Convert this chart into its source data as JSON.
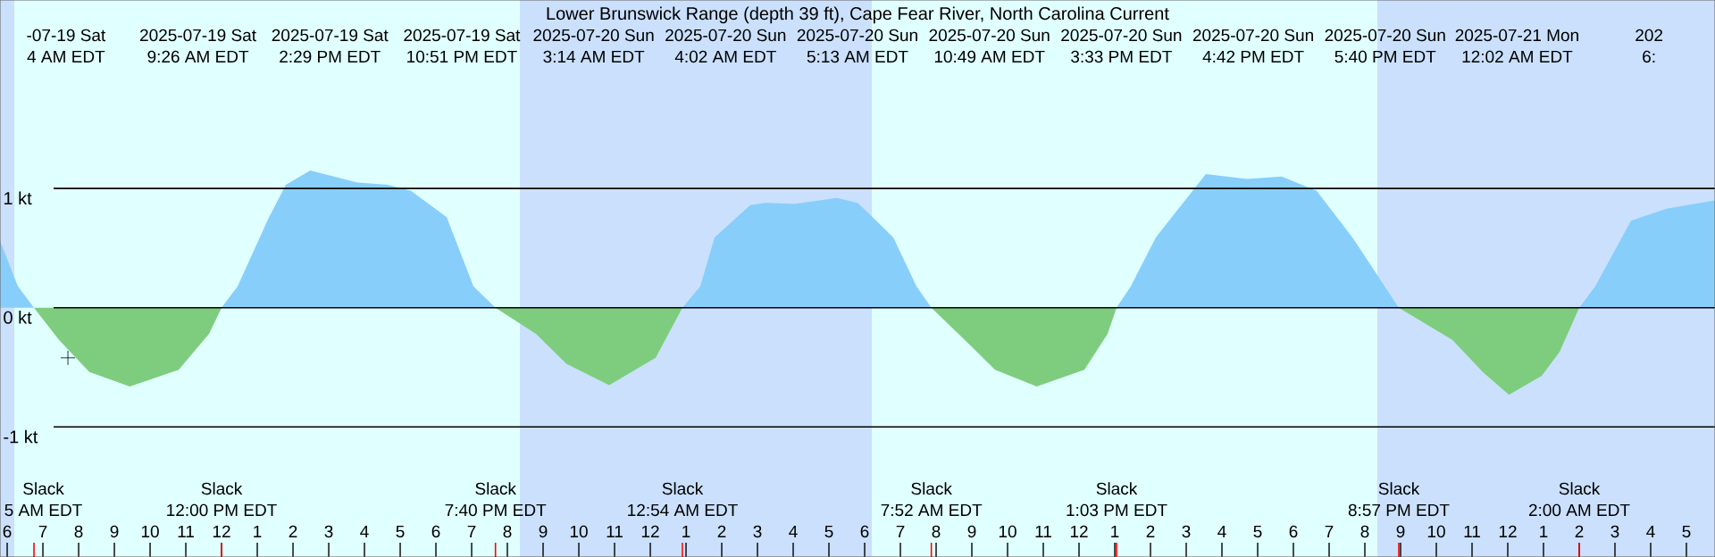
{
  "chart_data": {
    "type": "area",
    "title": "Lower Brunswick Range (depth 39 ft), Cape Fear River, North Carolina Current",
    "xlim": [
      "2025-07-19T05:48",
      "2025-07-21T05:48"
    ],
    "ylim": [
      -2.09,
      2.58
    ],
    "xticks": [
      {
        "value": "2025-07-19T06:00",
        "label": "6"
      },
      {
        "value": "2025-07-19T07:00",
        "label": "7"
      },
      {
        "value": "2025-07-19T08:00",
        "label": "8"
      },
      {
        "value": "2025-07-19T09:00",
        "label": "9"
      },
      {
        "value": "2025-07-19T10:00",
        "label": "10"
      },
      {
        "value": "2025-07-19T11:00",
        "label": "11"
      },
      {
        "value": "2025-07-19T12:00",
        "label": "12"
      },
      {
        "value": "2025-07-19T13:00",
        "label": "1"
      },
      {
        "value": "2025-07-19T14:00",
        "label": "2"
      },
      {
        "value": "2025-07-19T15:00",
        "label": "3"
      },
      {
        "value": "2025-07-19T16:00",
        "label": "4"
      },
      {
        "value": "2025-07-19T17:00",
        "label": "5"
      },
      {
        "value": "2025-07-19T18:00",
        "label": "6"
      },
      {
        "value": "2025-07-19T19:00",
        "label": "7"
      },
      {
        "value": "2025-07-19T20:00",
        "label": "8"
      },
      {
        "value": "2025-07-19T21:00",
        "label": "9"
      },
      {
        "value": "2025-07-19T22:00",
        "label": "10"
      },
      {
        "value": "2025-07-19T23:00",
        "label": "11"
      },
      {
        "value": "2025-07-20T00:00",
        "label": "12"
      },
      {
        "value": "2025-07-20T01:00",
        "label": "1"
      },
      {
        "value": "2025-07-20T02:00",
        "label": "2"
      },
      {
        "value": "2025-07-20T03:00",
        "label": "3"
      },
      {
        "value": "2025-07-20T04:00",
        "label": "4"
      },
      {
        "value": "2025-07-20T05:00",
        "label": "5"
      },
      {
        "value": "2025-07-20T06:00",
        "label": "6"
      },
      {
        "value": "2025-07-20T07:00",
        "label": "7"
      },
      {
        "value": "2025-07-20T08:00",
        "label": "8"
      },
      {
        "value": "2025-07-20T09:00",
        "label": "9"
      },
      {
        "value": "2025-07-20T10:00",
        "label": "10"
      },
      {
        "value": "2025-07-20T11:00",
        "label": "11"
      },
      {
        "value": "2025-07-20T12:00",
        "label": "12"
      },
      {
        "value": "2025-07-20T13:00",
        "label": "1"
      },
      {
        "value": "2025-07-20T14:00",
        "label": "2"
      },
      {
        "value": "2025-07-20T15:00",
        "label": "3"
      },
      {
        "value": "2025-07-20T16:00",
        "label": "4"
      },
      {
        "value": "2025-07-20T17:00",
        "label": "5"
      },
      {
        "value": "2025-07-20T18:00",
        "label": "6"
      },
      {
        "value": "2025-07-20T19:00",
        "label": "7"
      },
      {
        "value": "2025-07-20T20:00",
        "label": "8"
      },
      {
        "value": "2025-07-20T21:00",
        "label": "9"
      },
      {
        "value": "2025-07-20T22:00",
        "label": "10"
      },
      {
        "value": "2025-07-20T23:00",
        "label": "11"
      },
      {
        "value": "2025-07-21T00:00",
        "label": "12"
      },
      {
        "value": "2025-07-21T01:00",
        "label": "1"
      },
      {
        "value": "2025-07-21T02:00",
        "label": "2"
      },
      {
        "value": "2025-07-21T03:00",
        "label": "3"
      },
      {
        "value": "2025-07-21T04:00",
        "label": "4"
      },
      {
        "value": "2025-07-21T05:00",
        "label": "5"
      }
    ],
    "yticks": [
      {
        "value": 1,
        "label": "1 kt"
      },
      {
        "value": 0,
        "label": "0 kt"
      },
      {
        "value": -1,
        "label": "-1 kt"
      }
    ],
    "grid": "y",
    "bands": [
      {
        "axis": "x",
        "from": "2025-07-19T05:48",
        "to": "2025-07-19T06:12",
        "color": "#cae0fc"
      },
      {
        "axis": "x",
        "from": "2025-07-19T06:12",
        "to": "2025-07-19T20:21",
        "color": "#e0ffff"
      },
      {
        "axis": "x",
        "from": "2025-07-19T20:21",
        "to": "2025-07-20T06:12",
        "color": "#cae0fc"
      },
      {
        "axis": "x",
        "from": "2025-07-20T06:12",
        "to": "2025-07-20T20:21",
        "color": "#e0ffff"
      },
      {
        "axis": "x",
        "from": "2025-07-20T20:21",
        "to": "2025-07-21T05:48",
        "color": "#cae0fc"
      }
    ],
    "x": [
      "2025-07-19T05:48",
      "2025-07-19T06:18",
      "2025-07-19T06:45",
      "2025-07-19T07:27",
      "2025-07-19T08:18",
      "2025-07-19T09:26",
      "2025-07-19T10:48",
      "2025-07-19T11:39",
      "2025-07-19T12:00",
      "2025-07-19T12:27",
      "2025-07-19T13:18",
      "2025-07-19T13:48",
      "2025-07-19T14:29",
      "2025-07-19T15:48",
      "2025-07-19T16:39",
      "2025-07-19T17:18",
      "2025-07-19T18:18",
      "2025-07-19T19:03",
      "2025-07-19T19:40",
      "2025-07-19T20:48",
      "2025-07-19T21:39",
      "2025-07-19T22:51",
      "2025-07-20T00:09",
      "2025-07-20T00:54",
      "2025-07-20T01:24",
      "2025-07-20T01:48",
      "2025-07-20T02:48",
      "2025-07-20T03:14",
      "2025-07-20T04:02",
      "2025-07-20T05:13",
      "2025-07-20T05:48",
      "2025-07-20T06:09",
      "2025-07-20T06:48",
      "2025-07-20T07:27",
      "2025-07-20T07:52",
      "2025-07-20T08:48",
      "2025-07-20T09:39",
      "2025-07-20T10:49",
      "2025-07-20T12:09",
      "2025-07-20T12:48",
      "2025-07-20T13:03",
      "2025-07-20T13:27",
      "2025-07-20T14:09",
      "2025-07-20T15:33",
      "2025-07-20T16:42",
      "2025-07-20T17:40",
      "2025-07-20T18:39",
      "2025-07-20T19:39",
      "2025-07-20T20:57",
      "2025-07-20T22:27",
      "2025-07-20T23:18",
      "2025-07-21T00:02",
      "2025-07-21T00:57",
      "2025-07-21T01:27",
      "2025-07-21T02:00",
      "2025-07-21T02:27",
      "2025-07-21T03:27",
      "2025-07-21T04:27",
      "2025-07-21T05:48"
    ],
    "series": [
      {
        "color": "#87cefa",
        "values": [
          0.56,
          0.18,
          0,
          null,
          null,
          null,
          null,
          null,
          0,
          0.18,
          0.74,
          1.03,
          1.15,
          1.05,
          1.03,
          0.98,
          0.76,
          0.18,
          0,
          null,
          null,
          null,
          null,
          0,
          0.18,
          0.59,
          0.86,
          0.88,
          0.87,
          0.92,
          0.88,
          0.78,
          0.59,
          0.18,
          0,
          null,
          null,
          null,
          null,
          null,
          0,
          0.18,
          0.59,
          1.12,
          1.08,
          1.1,
          0.98,
          0.59,
          0,
          null,
          null,
          null,
          null,
          null,
          0,
          0.18,
          0.73,
          0.83,
          0.9
        ]
      },
      {
        "color": "#7ecd7e",
        "values": [
          null,
          null,
          0,
          -0.27,
          -0.54,
          -0.66,
          -0.52,
          -0.22,
          0,
          null,
          null,
          null,
          null,
          null,
          null,
          null,
          null,
          null,
          0,
          -0.22,
          -0.47,
          -0.65,
          -0.42,
          0,
          null,
          null,
          null,
          null,
          null,
          null,
          null,
          null,
          null,
          null,
          0,
          -0.27,
          -0.52,
          -0.66,
          -0.52,
          -0.22,
          0,
          null,
          null,
          null,
          null,
          null,
          null,
          null,
          0,
          -0.27,
          -0.54,
          -0.73,
          -0.57,
          -0.37,
          0,
          null,
          null,
          null,
          null
        ]
      },
      {
        "type": "scatter",
        "marker": "cross",
        "color": "#000000",
        "x": [
          "2025-07-19T07:42"
        ],
        "values": [
          -0.42
        ]
      }
    ],
    "annotations": [
      "-07-19 Sat",
      "4 AM EDT",
      "2025-07-19 Sat",
      "9:26 AM EDT",
      "2025-07-19 Sat",
      "2:29 PM EDT",
      "2025-07-19 Sat",
      "10:51 PM EDT",
      "2025-07-20 Sun",
      "3:14 AM EDT",
      "2025-07-20 Sun",
      "4:02 AM EDT",
      "2025-07-20 Sun",
      "5:13 AM EDT",
      "2025-07-20 Sun",
      "10:49 AM EDT",
      "2025-07-20 Sun",
      "3:33 PM EDT",
      "2025-07-20 Sun",
      "4:42 PM EDT",
      "2025-07-20 Sun",
      "5:40 PM EDT",
      "2025-07-21 Mon",
      "12:02 AM EDT",
      "202",
      "6:",
      "Slack",
      "5 AM EDT",
      "Slack",
      "12:00 PM EDT",
      "Slack",
      "7:40 PM EDT",
      "Slack",
      "12:54 AM EDT",
      "Slack",
      "7:52 AM EDT",
      "Slack",
      "1:03 PM EDT",
      "Slack",
      "8:57 PM EDT",
      "Slack",
      "2:00 AM EDT"
    ]
  }
}
